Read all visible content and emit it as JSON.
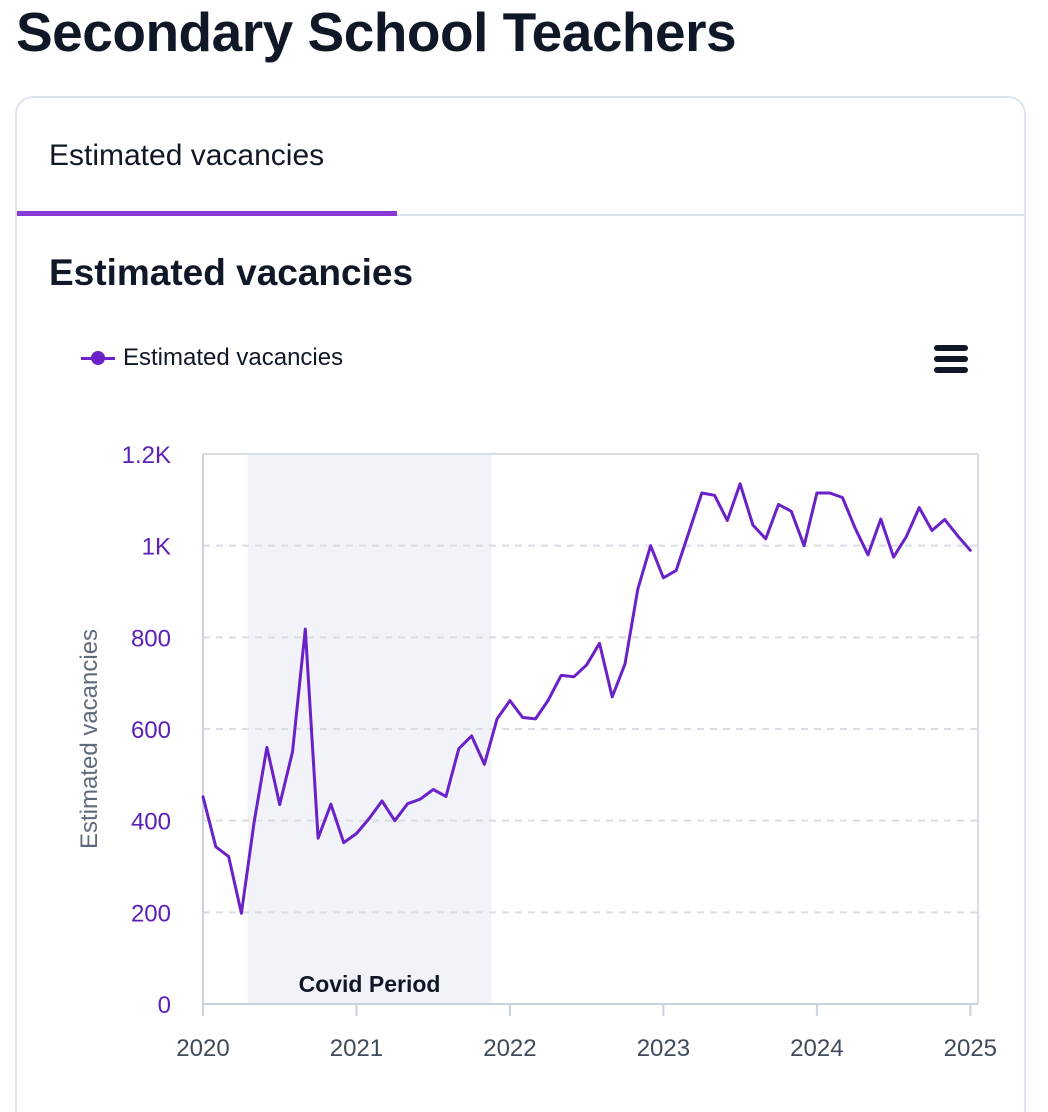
{
  "page": {
    "title": "Secondary School Teachers"
  },
  "tabs": [
    {
      "label": "Estimated vacancies",
      "active": true
    }
  ],
  "section": {
    "title": "Estimated vacancies"
  },
  "legend": {
    "label": "Estimated vacancies",
    "color": "#6b21c8"
  },
  "menu": {
    "icon": "hamburger-menu-icon"
  },
  "chart_data": {
    "type": "line",
    "title": "",
    "xlabel": "",
    "ylabel": "Estimated vacancies",
    "x_start": 2020.0,
    "x_step_months": 1,
    "xlim": [
      2020.0,
      2025.05
    ],
    "ylim": [
      0,
      1200
    ],
    "y_ticks": [
      0,
      200,
      400,
      600,
      800,
      1000,
      1200
    ],
    "y_tick_labels": [
      "0",
      "200",
      "400",
      "600",
      "800",
      "1K",
      "1.2K"
    ],
    "x_ticks": [
      2020,
      2021,
      2022,
      2023,
      2024,
      2025
    ],
    "x_tick_labels": [
      "2020",
      "2021",
      "2022",
      "2023",
      "2024",
      "2025"
    ],
    "grid": true,
    "legend_position": "top-left",
    "band": {
      "label": "Covid Period",
      "from": 2020.29,
      "to": 2021.88,
      "color": "#f1f3f8"
    },
    "series": [
      {
        "name": "Estimated vacancies",
        "color": "#6b21c8",
        "values": [
          452,
          343,
          322,
          198,
          398,
          560,
          435,
          550,
          818,
          362,
          436,
          352,
          372,
          405,
          443,
          400,
          437,
          447,
          468,
          453,
          557,
          585,
          523,
          622,
          662,
          625,
          622,
          663,
          717,
          714,
          740,
          787,
          670,
          742,
          905,
          1000,
          930,
          946,
          1030,
          1115,
          1110,
          1055,
          1135,
          1045,
          1015,
          1090,
          1075,
          1000,
          1115,
          1115,
          1105,
          1038,
          980,
          1058,
          975,
          1020,
          1083,
          1033,
          1057,
          1022,
          990
        ]
      }
    ]
  }
}
